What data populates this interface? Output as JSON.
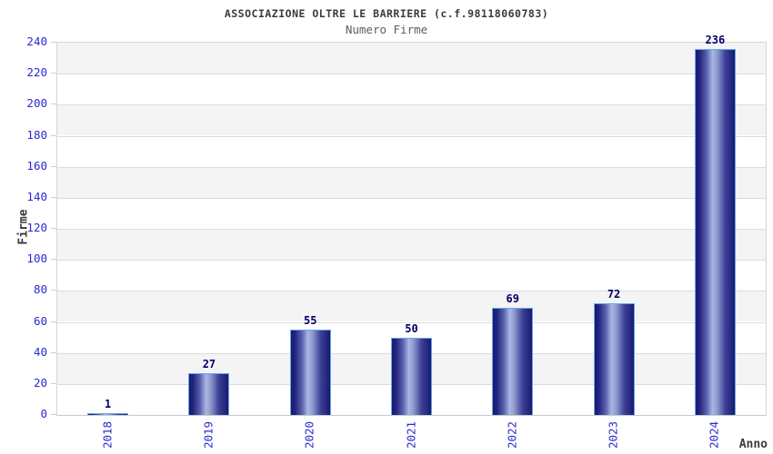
{
  "header": {
    "title": "ASSOCIAZIONE OLTRE LE BARRIERE (c.f.98118060783)",
    "subtitle": "Numero Firme"
  },
  "chart_data": {
    "type": "bar",
    "title": "ASSOCIAZIONE OLTRE LE BARRIERE (c.f.98118060783)",
    "subtitle": "Numero Firme",
    "categories": [
      "2018",
      "2019",
      "2020",
      "2021",
      "2022",
      "2023",
      "2024"
    ],
    "values": [
      1,
      27,
      55,
      50,
      69,
      72,
      236
    ],
    "xlabel": "Anno",
    "ylabel": "Firme",
    "ylim": [
      0,
      240
    ],
    "ytick_step": 20,
    "yticks": [
      0,
      20,
      40,
      60,
      80,
      100,
      120,
      140,
      160,
      180,
      200,
      220,
      240
    ],
    "grid": true,
    "legend": "none",
    "band_fill": "alternating gray/white horizontal bands",
    "bar_label_position": "above",
    "colors": {
      "bar_edge": "#1a1a6e",
      "bar_mid": "#aab6e2",
      "bar_border": "#63a8f0",
      "tick_label": "#2a2ace",
      "value_label": "#00006a",
      "title_text": "#3a3a3a",
      "subtitle_text": "#5d5d5d",
      "band_gray": "#f4f4f4",
      "gridline": "#dcdcdc"
    }
  }
}
